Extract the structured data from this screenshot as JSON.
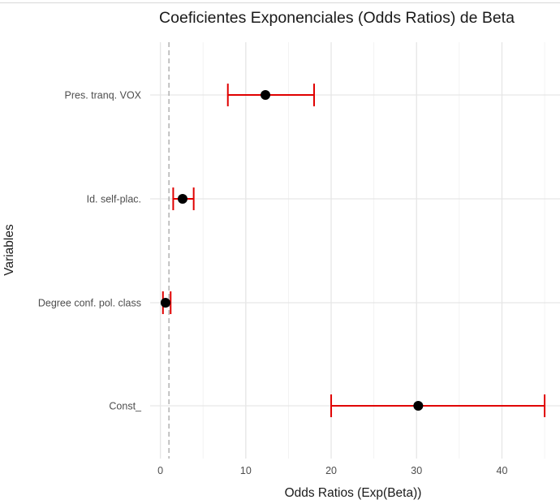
{
  "chart_data": {
    "type": "forest",
    "title": "Coeficientes Exponenciales (Odds Ratios) de Beta",
    "xlabel": "Odds Ratios (Exp(Beta))",
    "ylabel": "Variables",
    "xlim": [
      -1.2,
      46.8
    ],
    "x_ticks": [
      0,
      10,
      20,
      30,
      40
    ],
    "x_tick_labels": [
      "0",
      "10",
      "20",
      "30",
      "40"
    ],
    "reference_line": 1,
    "grid": true,
    "categories": [
      "Pres. tranq. VOX",
      "Id. self-plac.",
      "Degree conf. pol.  class",
      "Const_"
    ],
    "estimates": [
      12.3,
      2.6,
      0.6,
      30.2
    ],
    "ci_lower": [
      7.9,
      1.5,
      0.3,
      20.0
    ],
    "ci_upper": [
      18.0,
      3.9,
      1.2,
      45.0
    ],
    "colors": {
      "interval": "#e00000",
      "point": "#000000",
      "reference": "#a6a6a6",
      "grid": "#e6e6e6"
    }
  }
}
